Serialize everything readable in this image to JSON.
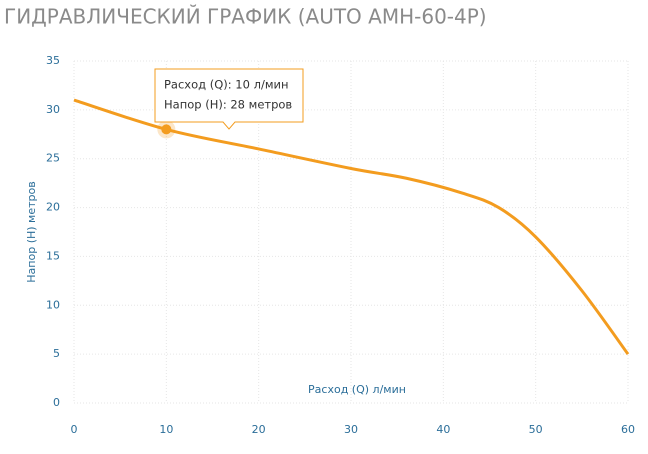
{
  "chart_data": {
    "type": "line",
    "title": "ГИДРАВЛИЧЕСКИЙ ГРАФИК (AUTO АМН-60-4Р)",
    "x_label": "Расход (Q) л/мин",
    "y_label": "Напор (H) метров",
    "x": [
      0,
      10,
      20,
      30,
      36,
      42,
      46,
      50,
      55,
      60
    ],
    "series": [
      {
        "color": "#f39c1f",
        "values": [
          31,
          28,
          26,
          24,
          23,
          21.5,
          20,
          17,
          11.5,
          5
        ]
      }
    ],
    "xlim": [
      0,
      60
    ],
    "xticks": [
      0,
      10,
      20,
      30,
      40,
      50,
      60
    ],
    "ylim": [
      0,
      35
    ],
    "yticks": [
      0,
      5,
      10,
      15,
      20,
      25,
      30,
      35
    ],
    "grid": true,
    "tooltip": {
      "point": 1,
      "lines": [
        "Расход (Q): 10 л/мин",
        "Напор (H):  28 метров"
      ]
    }
  }
}
